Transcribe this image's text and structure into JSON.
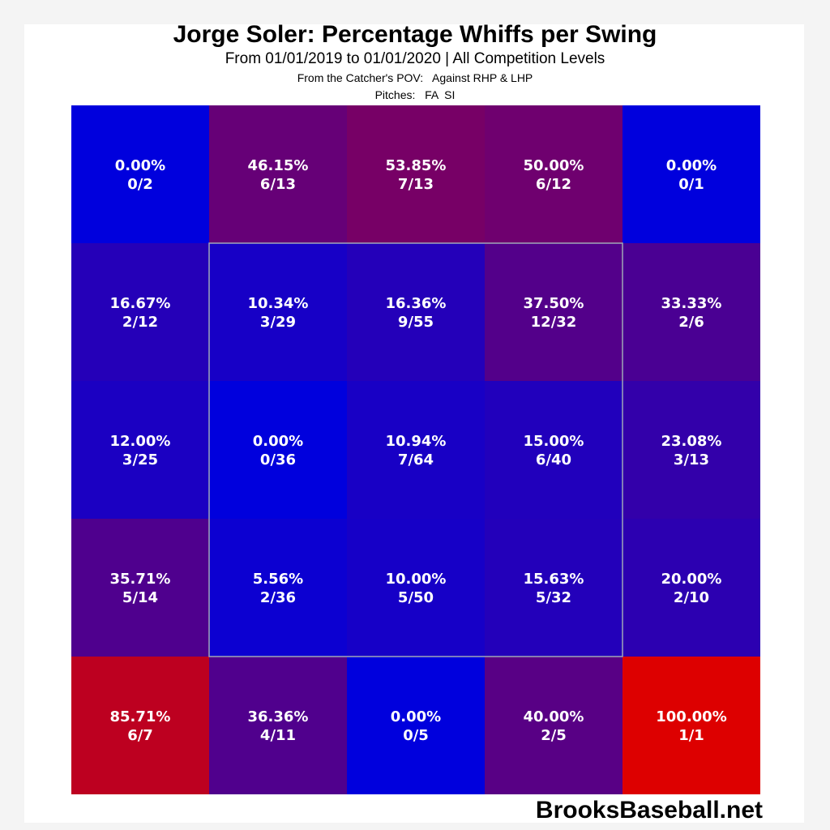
{
  "chart_data": {
    "type": "heatmap",
    "title": "Jorge Soler: Percentage Whiffs per Swing",
    "subtitle": "From 01/01/2019 to 01/01/2020 | All Competition Levels",
    "pov_label": "From the Catcher's POV:",
    "pov_value": "Against RHP & LHP",
    "pitches_label": "Pitches:",
    "pitches_value": "FA  SI",
    "rows": 5,
    "cols": 5,
    "strike_zone": {
      "row_start": 1,
      "row_end": 3,
      "col_start": 1,
      "col_end": 3
    },
    "cells": [
      [
        {
          "pct": "0.00%",
          "frac": "0/2",
          "value": 0.0
        },
        {
          "pct": "46.15%",
          "frac": "6/13",
          "value": 46.15
        },
        {
          "pct": "53.85%",
          "frac": "7/13",
          "value": 53.85
        },
        {
          "pct": "50.00%",
          "frac": "6/12",
          "value": 50.0
        },
        {
          "pct": "0.00%",
          "frac": "0/1",
          "value": 0.0
        }
      ],
      [
        {
          "pct": "16.67%",
          "frac": "2/12",
          "value": 16.67
        },
        {
          "pct": "10.34%",
          "frac": "3/29",
          "value": 10.34
        },
        {
          "pct": "16.36%",
          "frac": "9/55",
          "value": 16.36
        },
        {
          "pct": "37.50%",
          "frac": "12/32",
          "value": 37.5
        },
        {
          "pct": "33.33%",
          "frac": "2/6",
          "value": 33.33
        }
      ],
      [
        {
          "pct": "12.00%",
          "frac": "3/25",
          "value": 12.0
        },
        {
          "pct": "0.00%",
          "frac": "0/36",
          "value": 0.0
        },
        {
          "pct": "10.94%",
          "frac": "7/64",
          "value": 10.94
        },
        {
          "pct": "15.00%",
          "frac": "6/40",
          "value": 15.0
        },
        {
          "pct": "23.08%",
          "frac": "3/13",
          "value": 23.08
        }
      ],
      [
        {
          "pct": "35.71%",
          "frac": "5/14",
          "value": 35.71
        },
        {
          "pct": "5.56%",
          "frac": "2/36",
          "value": 5.56
        },
        {
          "pct": "10.00%",
          "frac": "5/50",
          "value": 10.0
        },
        {
          "pct": "15.63%",
          "frac": "5/32",
          "value": 15.63
        },
        {
          "pct": "20.00%",
          "frac": "2/10",
          "value": 20.0
        }
      ],
      [
        {
          "pct": "85.71%",
          "frac": "6/7",
          "value": 85.71
        },
        {
          "pct": "36.36%",
          "frac": "4/11",
          "value": 36.36
        },
        {
          "pct": "0.00%",
          "frac": "0/5",
          "value": 0.0
        },
        {
          "pct": "40.00%",
          "frac": "2/5",
          "value": 40.0
        },
        {
          "pct": "100.00%",
          "frac": "1/1",
          "value": 100.0
        }
      ]
    ],
    "color_low": "#0000dd",
    "color_high": "#dd0000",
    "strike_zone_color": "#a0a8b8",
    "label_color": "#ffffff",
    "credit": "BrooksBaseball.net"
  }
}
